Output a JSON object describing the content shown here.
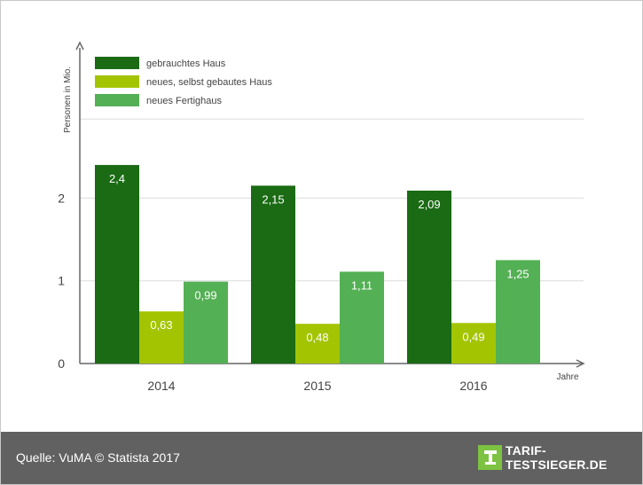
{
  "chart_data": {
    "type": "bar",
    "categories": [
      "2014",
      "2015",
      "2016"
    ],
    "series": [
      {
        "name": "gebrauchtes Haus",
        "color": "#1a6b14",
        "values": [
          2.4,
          2.15,
          2.09
        ],
        "labels": [
          "2,4",
          "2,15",
          "2,09"
        ]
      },
      {
        "name": "neues, selbst gebautes Haus",
        "color": "#a3c400",
        "values": [
          0.63,
          0.48,
          0.49
        ],
        "labels": [
          "0,63",
          "0,48",
          "0,49"
        ]
      },
      {
        "name": "neues Fertighaus",
        "color": "#53b054",
        "values": [
          0.99,
          1.11,
          1.25
        ],
        "labels": [
          "0,99",
          "1,11",
          "1,25"
        ]
      }
    ],
    "ylabel": "Personen in Mio.",
    "xlabel": "Jahre",
    "yticks": [
      0,
      1,
      2
    ],
    "ytick_labels": [
      "0",
      "1",
      "2"
    ],
    "ylim": [
      0,
      3
    ],
    "grid": true,
    "legend_position": "top-left"
  },
  "footer": {
    "source": "Quelle: VuMA © Statista 2017",
    "logo_text": "TARIF-TESTSIEGER.DE"
  }
}
